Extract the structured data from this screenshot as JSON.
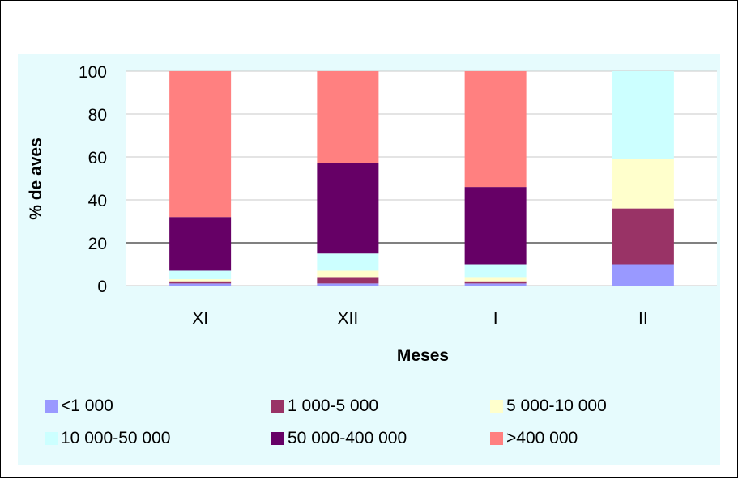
{
  "chart_data": {
    "type": "bar",
    "stacked": true,
    "categories": [
      "XI",
      "XII",
      "I",
      "II"
    ],
    "series": [
      {
        "name": "<1 000",
        "color": "#9999ff",
        "values": [
          1,
          1,
          1,
          10
        ]
      },
      {
        "name": "1 000-5 000",
        "color": "#993366",
        "values": [
          1,
          3,
          1,
          26
        ]
      },
      {
        "name": "5 000-10 000",
        "color": "#ffffcc",
        "values": [
          1,
          3,
          2,
          23
        ]
      },
      {
        "name": "10 000-50 000",
        "color": "#ccffff",
        "values": [
          4,
          8,
          6,
          41
        ]
      },
      {
        "name": "50 000-400 000",
        "color": "#660066",
        "values": [
          25,
          42,
          36,
          0
        ]
      },
      {
        "name": ">400 000",
        "color": "#ff8080",
        "values": [
          68,
          43,
          54,
          0
        ]
      }
    ],
    "title": "",
    "xlabel": "Meses",
    "ylabel": "% de aves",
    "ylim": [
      0,
      100
    ],
    "yticks": [
      "0",
      "20",
      "40",
      "60",
      "80",
      "100"
    ],
    "grid": true,
    "legend_position": "bottom",
    "plot_background": "#ffffff",
    "chart_background": "#e6fbfd"
  }
}
